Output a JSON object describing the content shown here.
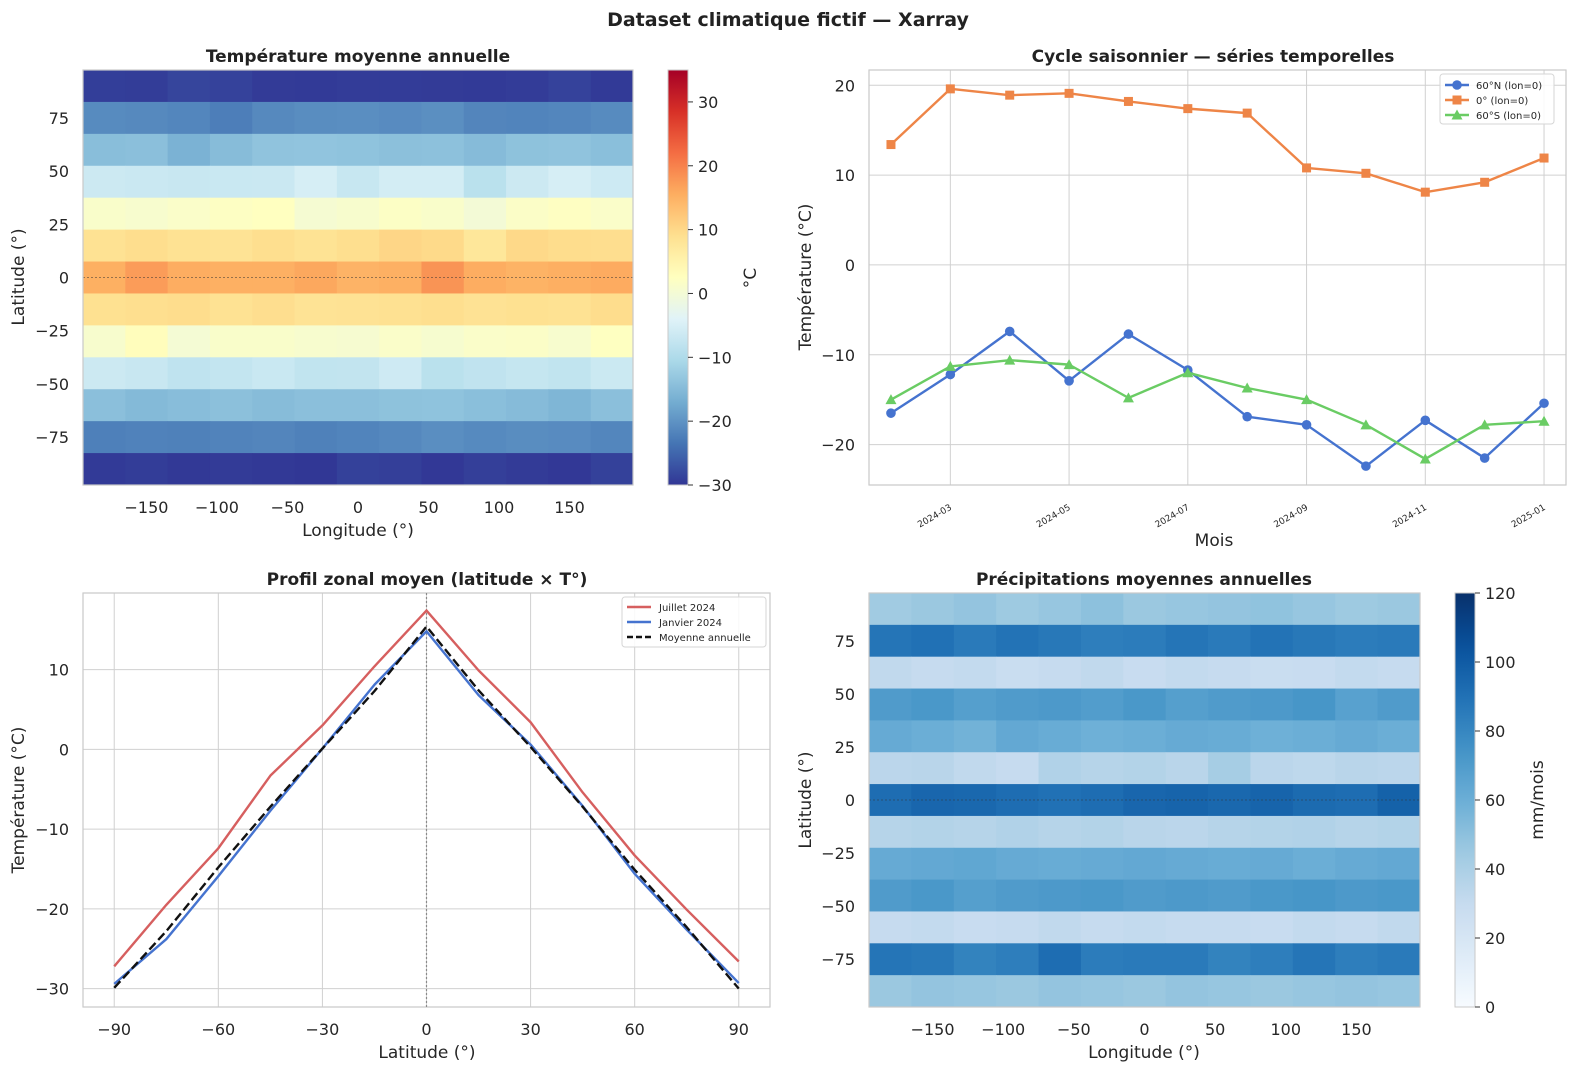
{
  "figure": {
    "suptitle": "Dataset climatique fictif — Xarray"
  },
  "chart_data": [
    {
      "id": "temp_map",
      "type": "heatmap",
      "title": "Température moyenne annuelle",
      "xlabel": "Longitude (°)",
      "ylabel": "Latitude (°)",
      "xlim": [
        -195,
        195
      ],
      "ylim": [
        -97.5,
        97.5
      ],
      "xticks": [
        -150,
        -100,
        -50,
        0,
        50,
        100,
        150
      ],
      "yticks": [
        -75,
        -50,
        -25,
        0,
        25,
        50,
        75
      ],
      "lon": [
        -180,
        -150,
        -120,
        -90,
        -60,
        -30,
        0,
        30,
        60,
        90,
        120,
        150,
        180
      ],
      "lat": [
        90,
        75,
        60,
        45,
        30,
        15,
        0,
        -15,
        -30,
        -45,
        -60,
        -75,
        -90
      ],
      "rows": [
        [
          -29.2,
          -29.3,
          -28.5,
          -28.8,
          -29.5,
          -29.6,
          -29.4,
          -29.4,
          -29.5,
          -29.6,
          -29.4,
          -28.8,
          -29.6
        ],
        [
          -21,
          -21.2,
          -21.5,
          -22.4,
          -21.2,
          -20.7,
          -20.6,
          -20.9,
          -20.5,
          -21.6,
          -21.8,
          -21.5,
          -21
        ],
        [
          -14.5,
          -14.3,
          -16.2,
          -14.8,
          -13.7,
          -13.6,
          -13.8,
          -14.2,
          -14.1,
          -14.9,
          -13.9,
          -13.7,
          -14.4
        ],
        [
          -6.5,
          -6.7,
          -6.9,
          -6.8,
          -6.7,
          -5.2,
          -7.1,
          -5.6,
          -5.6,
          -8.6,
          -6.4,
          -5.2,
          -6.3
        ],
        [
          1.2,
          0.8,
          1.4,
          2.1,
          2.4,
          0.3,
          0.9,
          1.8,
          1.2,
          -0.1,
          1.6,
          2.2,
          1.4
        ],
        [
          8.6,
          9.3,
          8.6,
          8.3,
          9.1,
          8.4,
          9.1,
          10.3,
          9.8,
          7.6,
          9.9,
          9.4,
          9.2
        ],
        [
          15.3,
          17.3,
          15.6,
          15.2,
          15.2,
          16.1,
          14.8,
          15.2,
          18.1,
          15.6,
          14.9,
          15.4,
          15.8
        ],
        [
          8.8,
          9.1,
          9.4,
          8.6,
          9.2,
          8.3,
          8.5,
          8.7,
          9.1,
          8.5,
          8.8,
          8.6,
          9.4
        ],
        [
          0.9,
          2.9,
          0.1,
          1.2,
          1.3,
          0.8,
          0.6,
          1.4,
          0.7,
          1.4,
          1.6,
          0.8,
          2.3
        ],
        [
          -6.4,
          -6.9,
          -8.1,
          -7.5,
          -6.8,
          -7.8,
          -7.7,
          -6.2,
          -8.6,
          -7.9,
          -7.3,
          -7.8,
          -6.6
        ],
        [
          -14.3,
          -15.1,
          -14.6,
          -14.2,
          -14.8,
          -14.3,
          -14.3,
          -13.9,
          -13.8,
          -14.4,
          -14.9,
          -15.7,
          -14.3
        ],
        [
          -22.2,
          -22,
          -22.1,
          -21.9,
          -21.6,
          -22.1,
          -21.8,
          -21.3,
          -20.6,
          -21.1,
          -20.7,
          -20.9,
          -21.5
        ],
        [
          -29.6,
          -29.3,
          -29.7,
          -29.5,
          -29.7,
          -29.9,
          -28.9,
          -29.1,
          -29.8,
          -29.1,
          -29.5,
          -29.8,
          -28.9
        ]
      ],
      "colorbar": {
        "label": "°C",
        "min": -30,
        "max": 35,
        "ticks": [
          -30,
          -20,
          -10,
          0,
          10,
          20,
          30
        ],
        "colormap": "RdYlBu_r"
      }
    },
    {
      "id": "seasonal",
      "type": "line",
      "title": "Cycle saisonnier — séries temporelles",
      "xlabel": "Mois",
      "ylabel": "Température (°C)",
      "xlim": [
        0.63,
        12.37
      ],
      "ylim": [
        -24.5,
        21.7
      ],
      "yticks": [
        -20,
        -10,
        0,
        10,
        20
      ],
      "x": [
        1,
        2,
        3,
        4,
        5,
        6,
        7,
        8,
        9,
        10,
        11,
        12
      ],
      "xtick_positions": [
        2,
        4,
        6,
        8,
        10,
        12
      ],
      "xtick_labels": [
        "2024-03",
        "2024-05",
        "2024-07",
        "2024-09",
        "2024-11",
        "2025-01"
      ],
      "legend_position": "top-right",
      "series": [
        {
          "name": "60°N (lon=0)",
          "color": "#4573cf",
          "marker": "circle",
          "values": [
            -16.5,
            -12.2,
            -7.4,
            -12.9,
            -7.7,
            -11.7,
            -16.9,
            -17.8,
            -22.4,
            -17.3,
            -21.5,
            -15.4
          ]
        },
        {
          "name": "0° (lon=0)",
          "color": "#ee8547",
          "marker": "square",
          "values": [
            13.4,
            19.6,
            18.9,
            19.1,
            18.2,
            17.4,
            16.9,
            10.8,
            10.2,
            8.1,
            9.2,
            11.9
          ]
        },
        {
          "name": "60°S (lon=0)",
          "color": "#6acc64",
          "marker": "triangle",
          "values": [
            -15,
            -11.3,
            -10.6,
            -11.1,
            -14.8,
            -12,
            -13.7,
            -15,
            -17.8,
            -21.6,
            -17.8,
            -17.4
          ]
        }
      ]
    },
    {
      "id": "zonal",
      "type": "line",
      "title": "Profil zonal moyen (latitude × T°)",
      "xlabel": "Latitude (°)",
      "ylabel": "Température (°C)",
      "xlim": [
        -99,
        99
      ],
      "ylim": [
        -32.3,
        19.6
      ],
      "xticks": [
        -90,
        -60,
        -30,
        0,
        30,
        60,
        90
      ],
      "yticks": [
        -30,
        -20,
        -10,
        0,
        10
      ],
      "x": [
        -90,
        -75,
        -60,
        -45,
        -30,
        -15,
        0,
        15,
        30,
        45,
        60,
        75,
        90
      ],
      "legend_position": "top-right",
      "series": [
        {
          "name": "Juillet 2024",
          "color": "#d65f5f",
          "dash": "solid",
          "values": [
            -27.2,
            -19.5,
            -12.4,
            -3.3,
            3,
            10.4,
            17.4,
            9.9,
            3.4,
            -5.4,
            -13.3,
            -20.1,
            -26.6
          ]
        },
        {
          "name": "Janvier 2024",
          "color": "#4573cf",
          "dash": "solid",
          "values": [
            -29.4,
            -23.8,
            -15.9,
            -7.7,
            0.1,
            8.1,
            14.8,
            6.8,
            0.6,
            -7.1,
            -15.6,
            -22.6,
            -29.3
          ]
        },
        {
          "name": "Moyenne annuelle",
          "color": "#111111",
          "dash": "dashed",
          "values": [
            -29.9,
            -22.8,
            -14.8,
            -7.2,
            0.1,
            7.3,
            15.4,
            7.4,
            0.3,
            -7.2,
            -15.1,
            -22.3,
            -30
          ]
        }
      ]
    },
    {
      "id": "precip_map",
      "type": "heatmap",
      "title": "Précipitations moyennes annuelles",
      "xlabel": "Longitude (°)",
      "ylabel": "Latitude (°)",
      "xlim": [
        -195,
        195
      ],
      "ylim": [
        -97.5,
        97.5
      ],
      "xticks": [
        -150,
        -100,
        -50,
        0,
        50,
        100,
        150
      ],
      "yticks": [
        -75,
        -50,
        -25,
        0,
        25,
        50,
        75
      ],
      "lon": [
        -180,
        -150,
        -120,
        -90,
        -60,
        -30,
        0,
        30,
        60,
        90,
        120,
        150,
        180
      ],
      "lat": [
        90,
        75,
        60,
        45,
        30,
        15,
        0,
        -15,
        -30,
        -45,
        -60,
        -75,
        -90
      ],
      "rows": [
        [
          44,
          46,
          48,
          45,
          47,
          50,
          46,
          47,
          48,
          49,
          47,
          45,
          46
        ],
        [
          88,
          90,
          86,
          89,
          87,
          84,
          85,
          88,
          86,
          89,
          87,
          85,
          86
        ],
        [
          32,
          30,
          31,
          28,
          30,
          32,
          29,
          31,
          30,
          28,
          29,
          31,
          30
        ],
        [
          70,
          72,
          68,
          70,
          71,
          69,
          72,
          68,
          70,
          71,
          73,
          67,
          70
        ],
        [
          62,
          60,
          58,
          63,
          61,
          59,
          60,
          62,
          61,
          59,
          60,
          62,
          60
        ],
        [
          34,
          35,
          32,
          30,
          38,
          36,
          37,
          35,
          42,
          34,
          33,
          35,
          34
        ],
        [
          92,
          95,
          94,
          92,
          90,
          92,
          95,
          96,
          94,
          96,
          93,
          92,
          97
        ],
        [
          36,
          37,
          36,
          38,
          36,
          37,
          35,
          34,
          36,
          37,
          38,
          36,
          37
        ],
        [
          62,
          63,
          64,
          62,
          61,
          62,
          63,
          62,
          61,
          62,
          60,
          62,
          63
        ],
        [
          70,
          72,
          68,
          70,
          71,
          72,
          70,
          71,
          70,
          72,
          73,
          71,
          72
        ],
        [
          30,
          31,
          29,
          30,
          32,
          30,
          31,
          30,
          30,
          29,
          31,
          30,
          32
        ],
        [
          88,
          87,
          82,
          84,
          92,
          85,
          86,
          86,
          82,
          84,
          88,
          84,
          86
        ],
        [
          46,
          48,
          47,
          46,
          48,
          47,
          46,
          48,
          47,
          46,
          47,
          48,
          47
        ]
      ],
      "colorbar": {
        "label": "mm/mois",
        "min": 0,
        "max": 120,
        "ticks": [
          0,
          20,
          40,
          60,
          80,
          100,
          120
        ],
        "colormap": "Blues"
      }
    }
  ]
}
